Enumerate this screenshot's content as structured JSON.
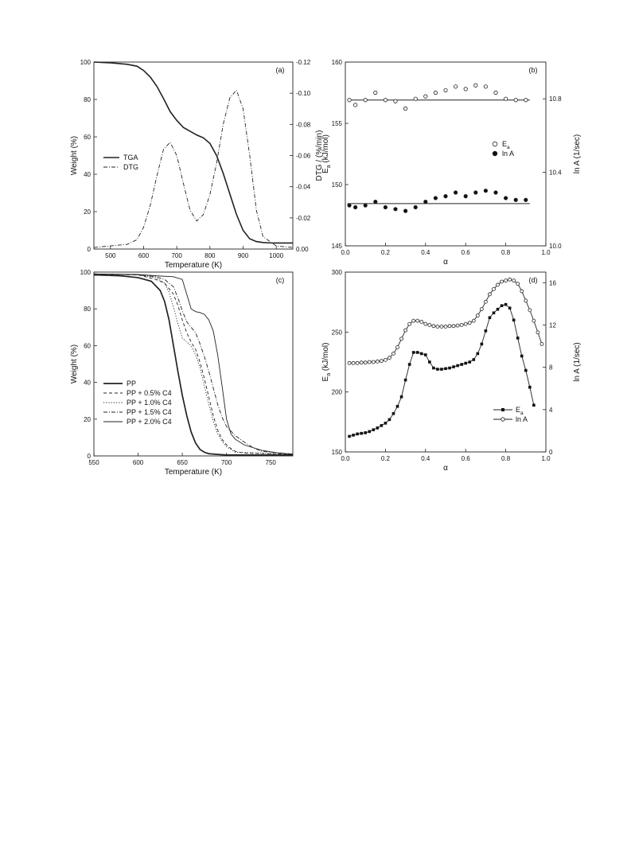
{
  "chart_data": [
    {
      "panel": "(a)",
      "type": "line",
      "xlabel": "Temperature (K)",
      "ylabel": "Weight (%)",
      "y2label": "DTG / (%/min)",
      "xlim": [
        450,
        1050
      ],
      "ylim": [
        0,
        100
      ],
      "y2lim": [
        0.0,
        -0.12
      ],
      "x_ticks": [
        "500",
        "600",
        "700",
        "800",
        "900",
        "1000"
      ],
      "y_ticks": [
        "0",
        "20",
        "40",
        "60",
        "80",
        "100"
      ],
      "y2_ticks": [
        "0.00",
        "-0.02",
        "-0.04",
        "-0.06",
        "-0.08",
        "-0.10",
        "-0.12"
      ],
      "legend_position": "middle-left",
      "series": [
        {
          "name": "TGA",
          "axis": "left",
          "style": "solid",
          "x": [
            450,
            500,
            550,
            580,
            600,
            620,
            640,
            660,
            680,
            700,
            720,
            740,
            760,
            780,
            800,
            820,
            840,
            860,
            880,
            900,
            920,
            940,
            960,
            980,
            1000,
            1050
          ],
          "y": [
            100,
            99.6,
            98.8,
            97.8,
            95.5,
            92,
            87,
            80.5,
            73.5,
            68.8,
            65,
            63,
            61,
            59.5,
            56.5,
            50,
            40.5,
            29.5,
            18.5,
            10,
            5.5,
            4,
            3.5,
            3.3,
            3.2,
            3.2
          ]
        },
        {
          "name": "DTG",
          "axis": "right",
          "style": "dash-dot",
          "x": [
            450,
            500,
            550,
            580,
            600,
            620,
            640,
            660,
            680,
            700,
            720,
            740,
            760,
            780,
            800,
            820,
            840,
            860,
            880,
            900,
            920,
            940,
            960,
            1000,
            1050
          ],
          "y": [
            -0.001,
            -0.002,
            -0.003,
            -0.006,
            -0.014,
            -0.028,
            -0.047,
            -0.064,
            -0.0685,
            -0.06,
            -0.042,
            -0.025,
            -0.018,
            -0.022,
            -0.035,
            -0.055,
            -0.08,
            -0.097,
            -0.102,
            -0.09,
            -0.06,
            -0.025,
            -0.008,
            -0.002,
            -0.001
          ]
        }
      ]
    },
    {
      "panel": "(b)",
      "type": "scatter",
      "xlabel": "α",
      "ylabel": "E",
      "ylabel_sub": "a",
      "ylabel_rest": " (kJ/mol)",
      "y2label": "ln A (1/sec)",
      "xlim": [
        0,
        1
      ],
      "ylim": [
        145,
        160
      ],
      "y2lim": [
        10.0,
        11.0
      ],
      "x_ticks": [
        "0.0",
        "0.2",
        "0.4",
        "0.6",
        "0.8",
        "1.0"
      ],
      "y_ticks": [
        "145",
        "150",
        "155",
        "160"
      ],
      "y2_ticks": [
        "10.0",
        "10.4",
        "10.8"
      ],
      "legend_position": "right",
      "x": [
        0.02,
        0.05,
        0.1,
        0.15,
        0.2,
        0.25,
        0.3,
        0.35,
        0.4,
        0.45,
        0.5,
        0.55,
        0.6,
        0.65,
        0.7,
        0.75,
        0.8,
        0.85,
        0.9
      ],
      "series": [
        {
          "name": "E",
          "name_sub": "a",
          "marker": "open-circle",
          "axis": "left",
          "y": [
            156.9,
            156.5,
            156.9,
            157.5,
            156.9,
            156.8,
            156.2,
            157.0,
            157.2,
            157.5,
            157.7,
            158.0,
            157.8,
            158.1,
            158.0,
            157.5,
            157.0,
            156.9,
            156.9
          ],
          "fit": 156.9
        },
        {
          "name": "ln A",
          "marker": "filled-circle",
          "axis": "right",
          "y": [
            10.22,
            10.21,
            10.22,
            10.24,
            10.21,
            10.2,
            10.19,
            10.21,
            10.24,
            10.26,
            10.27,
            10.29,
            10.27,
            10.29,
            10.3,
            10.29,
            10.26,
            10.25,
            10.25
          ],
          "fit": 10.23
        }
      ]
    },
    {
      "panel": "(c)",
      "type": "line",
      "xlabel": "Temperature (K)",
      "ylabel": "Weight (%)",
      "xlim": [
        550,
        775
      ],
      "ylim": [
        0,
        100
      ],
      "x_ticks": [
        "550",
        "600",
        "650",
        "700",
        "750"
      ],
      "y_ticks": [
        "0",
        "20",
        "40",
        "60",
        "80",
        "100"
      ],
      "legend_position": "lower-left",
      "series": [
        {
          "name": "PP",
          "style": "solid-bold",
          "x": [
            550,
            580,
            600,
            615,
            625,
            630,
            635,
            640,
            645,
            650,
            655,
            660,
            665,
            670,
            675,
            680,
            690,
            700,
            775
          ],
          "y": [
            98.5,
            98,
            97,
            95,
            90,
            84,
            74,
            60,
            46,
            33,
            22,
            13,
            7,
            3.5,
            2,
            1.2,
            0.8,
            0.5,
            0.5
          ]
        },
        {
          "name": "PP + 0.5% C4",
          "style": "dashed",
          "x": [
            550,
            600,
            620,
            630,
            640,
            645,
            650,
            655,
            660,
            665,
            670,
            675,
            680,
            685,
            690,
            695,
            700,
            705,
            710,
            720,
            775
          ],
          "y": [
            99,
            98.5,
            96,
            94,
            88,
            82,
            74,
            67,
            62,
            58,
            51,
            42,
            32,
            22,
            14,
            9,
            6,
            4,
            2.5,
            1.5,
            1
          ]
        },
        {
          "name": "PP + 1.0% C4",
          "style": "dotted",
          "x": [
            550,
            600,
            620,
            630,
            635,
            640,
            645,
            650,
            655,
            660,
            665,
            670,
            675,
            680,
            685,
            690,
            695,
            700,
            710,
            775
          ],
          "y": [
            99,
            98.5,
            97,
            94,
            89,
            81,
            72,
            64,
            62,
            60,
            55,
            48,
            38,
            28,
            19,
            12,
            8,
            5,
            2,
            1
          ]
        },
        {
          "name": "PP + 1.5% C4",
          "style": "dash-dot",
          "x": [
            550,
            600,
            620,
            630,
            640,
            645,
            650,
            655,
            660,
            665,
            670,
            675,
            680,
            685,
            690,
            695,
            700,
            710,
            720,
            730,
            740,
            775
          ],
          "y": [
            99,
            98.5,
            97.5,
            96,
            92,
            86,
            79,
            73,
            70,
            67,
            61,
            54,
            46,
            37,
            28,
            21,
            16,
            11,
            7.5,
            4.5,
            2.5,
            1
          ]
        },
        {
          "name": "PP + 2.0% C4",
          "style": "solid",
          "x": [
            550,
            600,
            620,
            640,
            650,
            655,
            660,
            665,
            670,
            675,
            680,
            685,
            690,
            695,
            700,
            705,
            710,
            720,
            740,
            760,
            775
          ],
          "y": [
            99,
            98.7,
            98,
            97.5,
            96,
            88,
            80,
            78.5,
            78,
            77,
            74,
            68,
            55,
            38,
            20,
            12,
            9,
            6,
            3,
            1.5,
            1
          ]
        }
      ]
    },
    {
      "panel": "(d)",
      "type": "line",
      "xlabel": "α",
      "ylabel": "E",
      "ylabel_sub": "a",
      "ylabel_rest": " (kJ/mol)",
      "y2label": "ln A (1/sec)",
      "xlim": [
        0,
        1
      ],
      "ylim": [
        150,
        300
      ],
      "y2lim": [
        0,
        17
      ],
      "x_ticks": [
        "0.0",
        "0.2",
        "0.4",
        "0.6",
        "0.8",
        "1.0"
      ],
      "y_ticks": [
        "150",
        "200",
        "250",
        "300"
      ],
      "y2_ticks": [
        "0",
        "4",
        "8",
        "12",
        "16"
      ],
      "legend_position": "lower-right",
      "series": [
        {
          "name": "E",
          "name_sub": "a",
          "marker": "filled-square",
          "axis": "left",
          "x": [
            0.02,
            0.04,
            0.06,
            0.08,
            0.1,
            0.12,
            0.14,
            0.16,
            0.18,
            0.2,
            0.22,
            0.24,
            0.26,
            0.28,
            0.3,
            0.32,
            0.34,
            0.36,
            0.38,
            0.4,
            0.42,
            0.44,
            0.46,
            0.48,
            0.5,
            0.52,
            0.54,
            0.56,
            0.58,
            0.6,
            0.62,
            0.64,
            0.66,
            0.68,
            0.7,
            0.72,
            0.74,
            0.76,
            0.78,
            0.8,
            0.82,
            0.84,
            0.86,
            0.88,
            0.9,
            0.92,
            0.94
          ],
          "y": [
            163,
            164,
            165,
            165.5,
            166,
            167,
            168.5,
            170,
            172,
            174,
            177,
            182,
            188,
            196,
            210,
            223,
            233,
            233,
            232,
            231,
            225,
            220,
            219,
            219,
            219.5,
            220,
            221,
            222,
            223,
            224,
            225,
            227,
            232,
            240,
            251,
            262,
            266,
            269,
            272,
            273,
            270,
            260,
            245,
            230,
            218,
            204,
            189
          ]
        },
        {
          "name": "ln A",
          "marker": "open-circle",
          "axis": "right",
          "x": [
            0.02,
            0.04,
            0.06,
            0.08,
            0.1,
            0.12,
            0.14,
            0.16,
            0.18,
            0.2,
            0.22,
            0.24,
            0.26,
            0.28,
            0.3,
            0.32,
            0.34,
            0.36,
            0.38,
            0.4,
            0.42,
            0.44,
            0.46,
            0.48,
            0.5,
            0.52,
            0.54,
            0.56,
            0.58,
            0.6,
            0.62,
            0.64,
            0.66,
            0.68,
            0.7,
            0.72,
            0.74,
            0.76,
            0.78,
            0.8,
            0.82,
            0.84,
            0.86,
            0.88,
            0.9,
            0.92,
            0.94,
            0.96,
            0.98
          ],
          "y": [
            8.4,
            8.4,
            8.4,
            8.45,
            8.45,
            8.5,
            8.5,
            8.55,
            8.6,
            8.7,
            8.9,
            9.3,
            9.9,
            10.7,
            11.5,
            12.1,
            12.4,
            12.4,
            12.3,
            12.1,
            12.0,
            11.9,
            11.85,
            11.85,
            11.85,
            11.9,
            11.9,
            11.95,
            12.0,
            12.1,
            12.2,
            12.4,
            12.9,
            13.5,
            14.2,
            14.9,
            15.4,
            15.8,
            16.1,
            16.2,
            16.3,
            16.2,
            15.9,
            15.2,
            14.3,
            13.4,
            12.4,
            11.3,
            10.2
          ]
        }
      ]
    }
  ]
}
